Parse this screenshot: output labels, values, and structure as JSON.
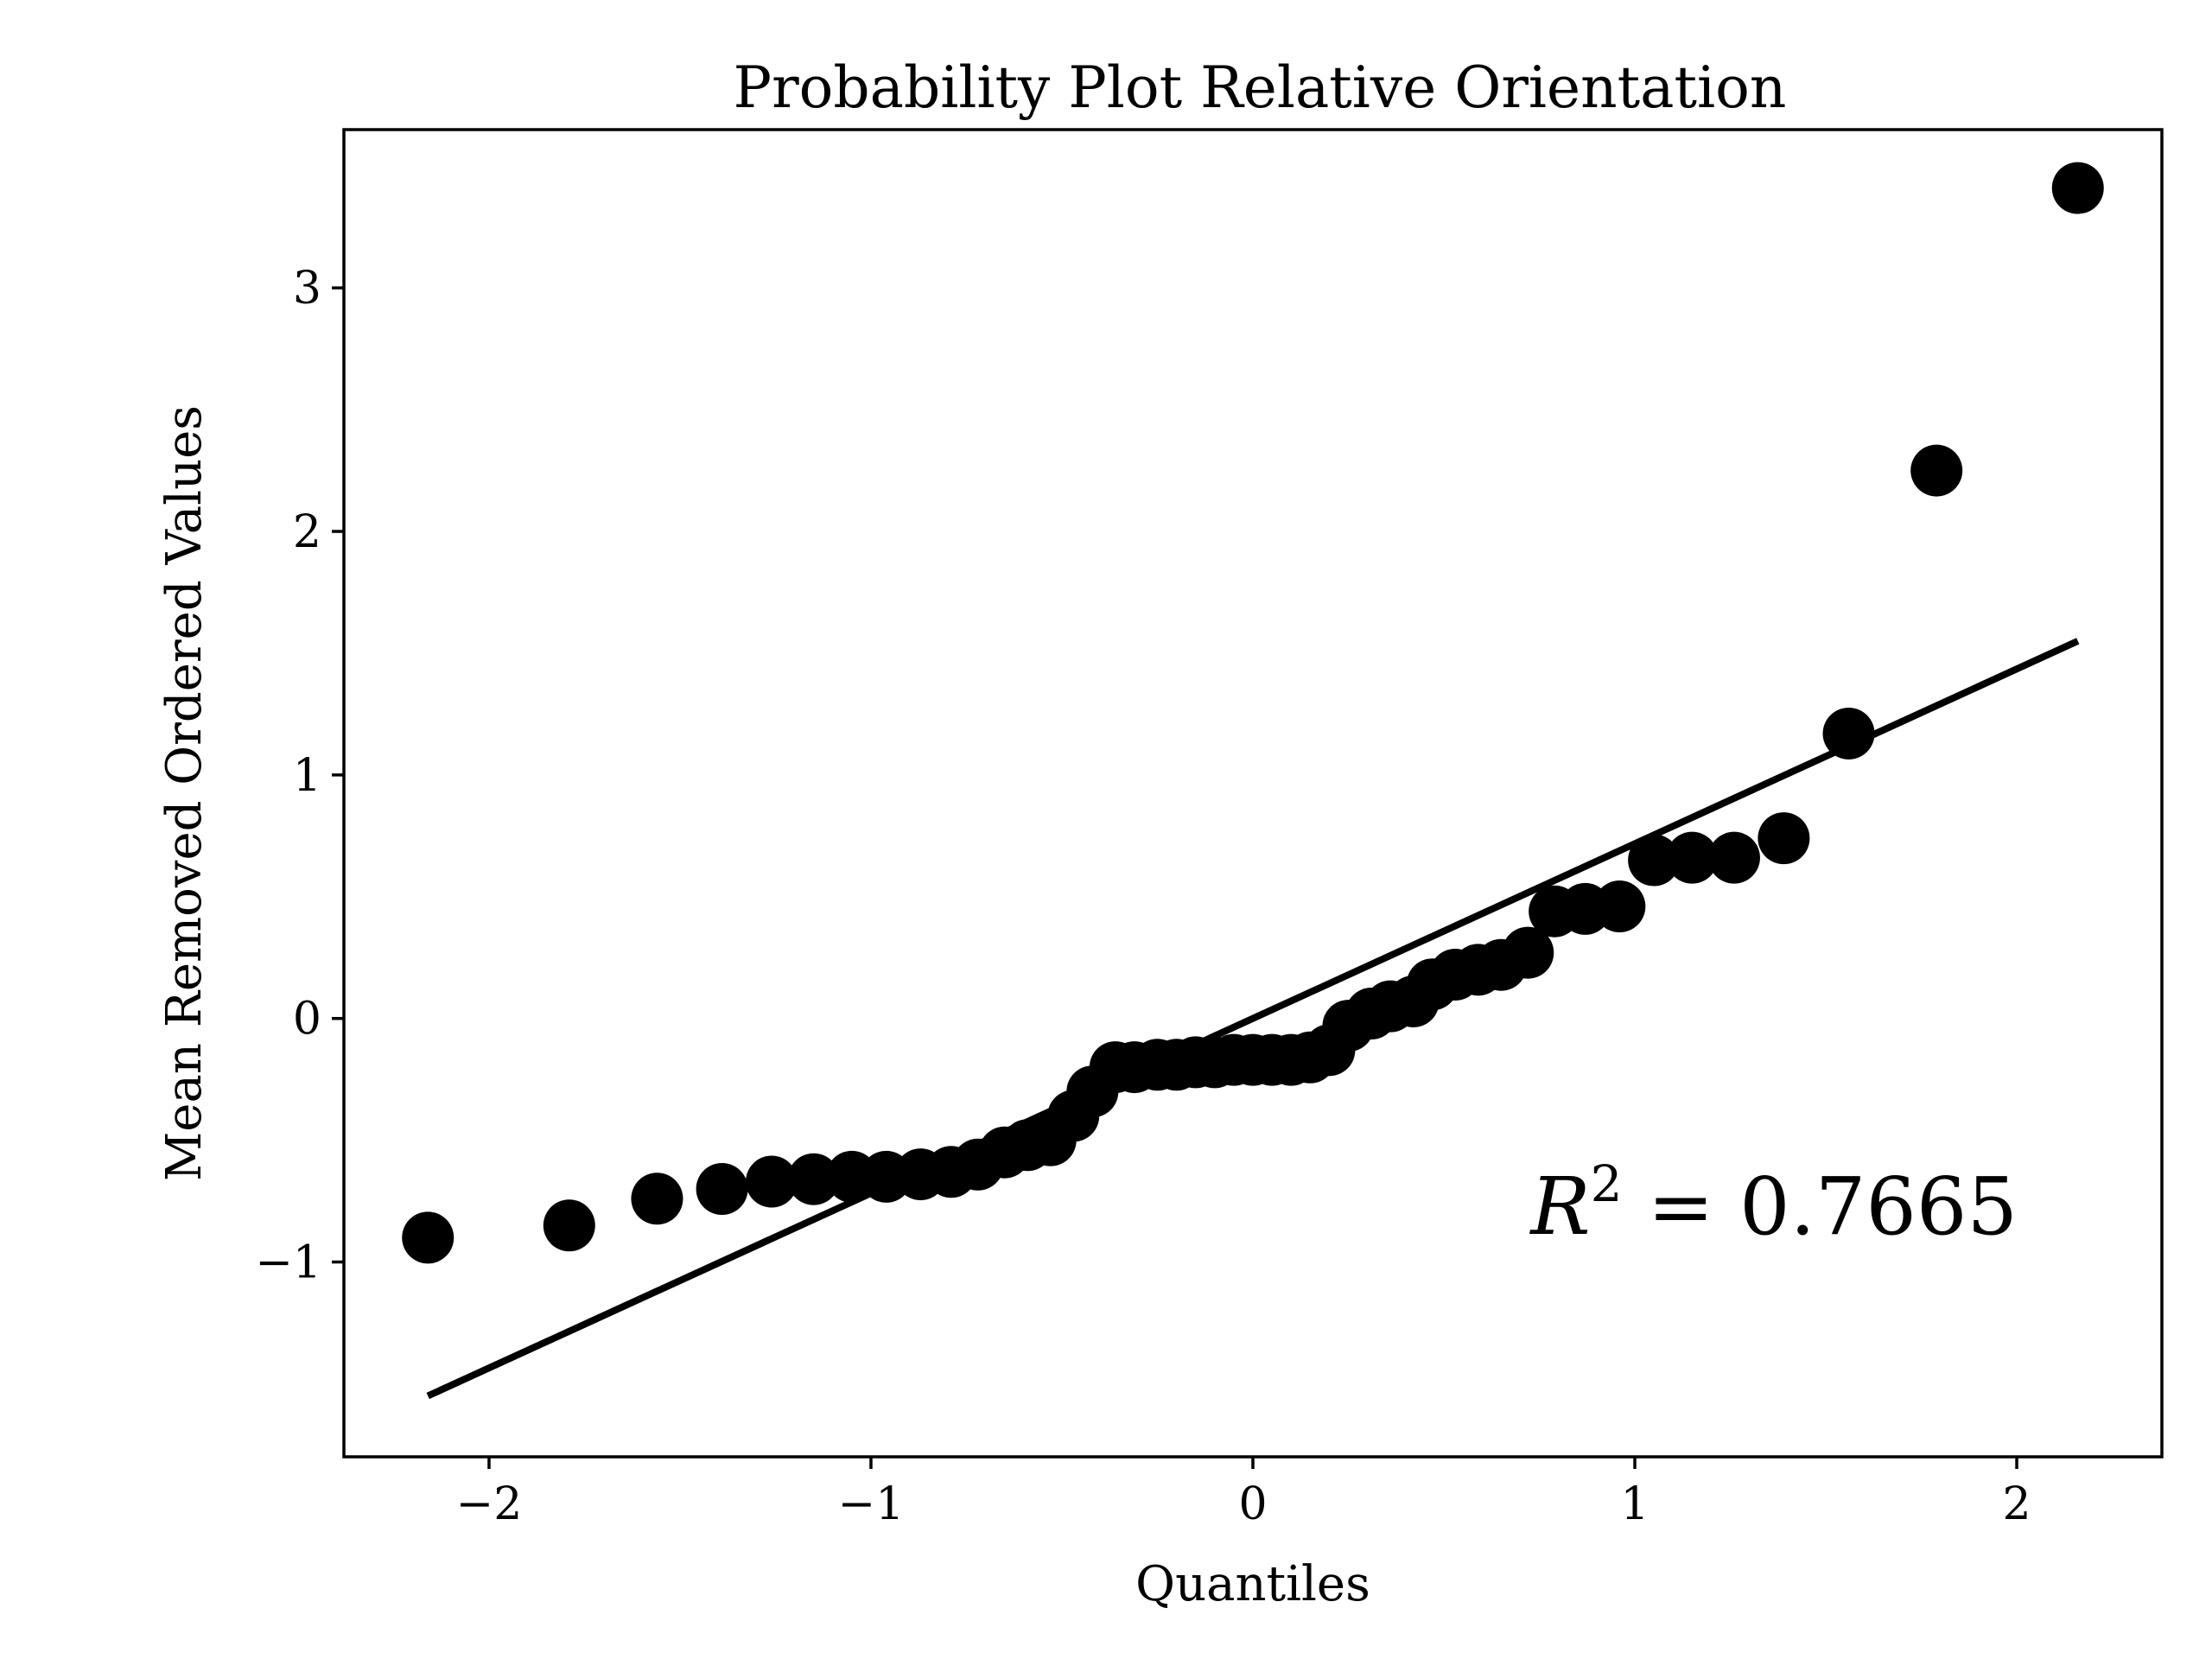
{
  "chart_data": {
    "type": "scatter",
    "title": "Probability Plot Relative Orientation",
    "xlabel": "Quantiles",
    "ylabel": "Mean Removed Ordered Values",
    "xlim": [
      -2.38,
      2.38
    ],
    "ylim": [
      -1.8,
      3.65
    ],
    "xticks": [
      -2,
      -1,
      0,
      1,
      2
    ],
    "xtick_labels": [
      "−2",
      "−1",
      "0",
      "1",
      "2"
    ],
    "yticks": [
      -1,
      0,
      1,
      2,
      3
    ],
    "ytick_labels": [
      "−1",
      "0",
      "1",
      "2",
      "3"
    ],
    "grid": false,
    "legend": "none",
    "marker_color": "#000000",
    "line_color": "#000000",
    "series": [
      {
        "kind": "points",
        "x": [
          -2.16,
          -1.79,
          -1.56,
          -1.39,
          -1.26,
          -1.15,
          -1.05,
          -0.96,
          -0.87,
          -0.79,
          -0.72,
          -0.65,
          -0.59,
          -0.53,
          -0.47,
          -0.42,
          -0.36,
          -0.31,
          -0.25,
          -0.2,
          -0.15,
          -0.1,
          -0.05,
          0.0,
          0.05,
          0.1,
          0.15,
          0.2,
          0.25,
          0.31,
          0.36,
          0.42,
          0.47,
          0.53,
          0.59,
          0.65,
          0.72,
          0.79,
          0.87,
          0.96,
          1.05,
          1.15,
          1.26,
          1.39,
          1.56,
          1.79,
          2.16
        ],
        "y": [
          -0.9,
          -0.85,
          -0.74,
          -0.7,
          -0.67,
          -0.66,
          -0.65,
          -0.65,
          -0.64,
          -0.63,
          -0.6,
          -0.55,
          -0.52,
          -0.5,
          -0.4,
          -0.3,
          -0.2,
          -0.2,
          -0.19,
          -0.19,
          -0.18,
          -0.18,
          -0.17,
          -0.17,
          -0.17,
          -0.17,
          -0.16,
          -0.13,
          -0.03,
          0.02,
          0.05,
          0.07,
          0.14,
          0.18,
          0.2,
          0.22,
          0.27,
          0.44,
          0.45,
          0.46,
          0.65,
          0.66,
          0.66,
          0.74,
          1.17,
          2.25,
          3.41
        ]
      },
      {
        "kind": "fit-line",
        "x": [
          -2.16,
          2.16
        ],
        "y": [
          -1.55,
          1.55
        ]
      }
    ],
    "annotation": {
      "r": "R",
      "sup": "2",
      "rest": " = 0.7665"
    }
  }
}
